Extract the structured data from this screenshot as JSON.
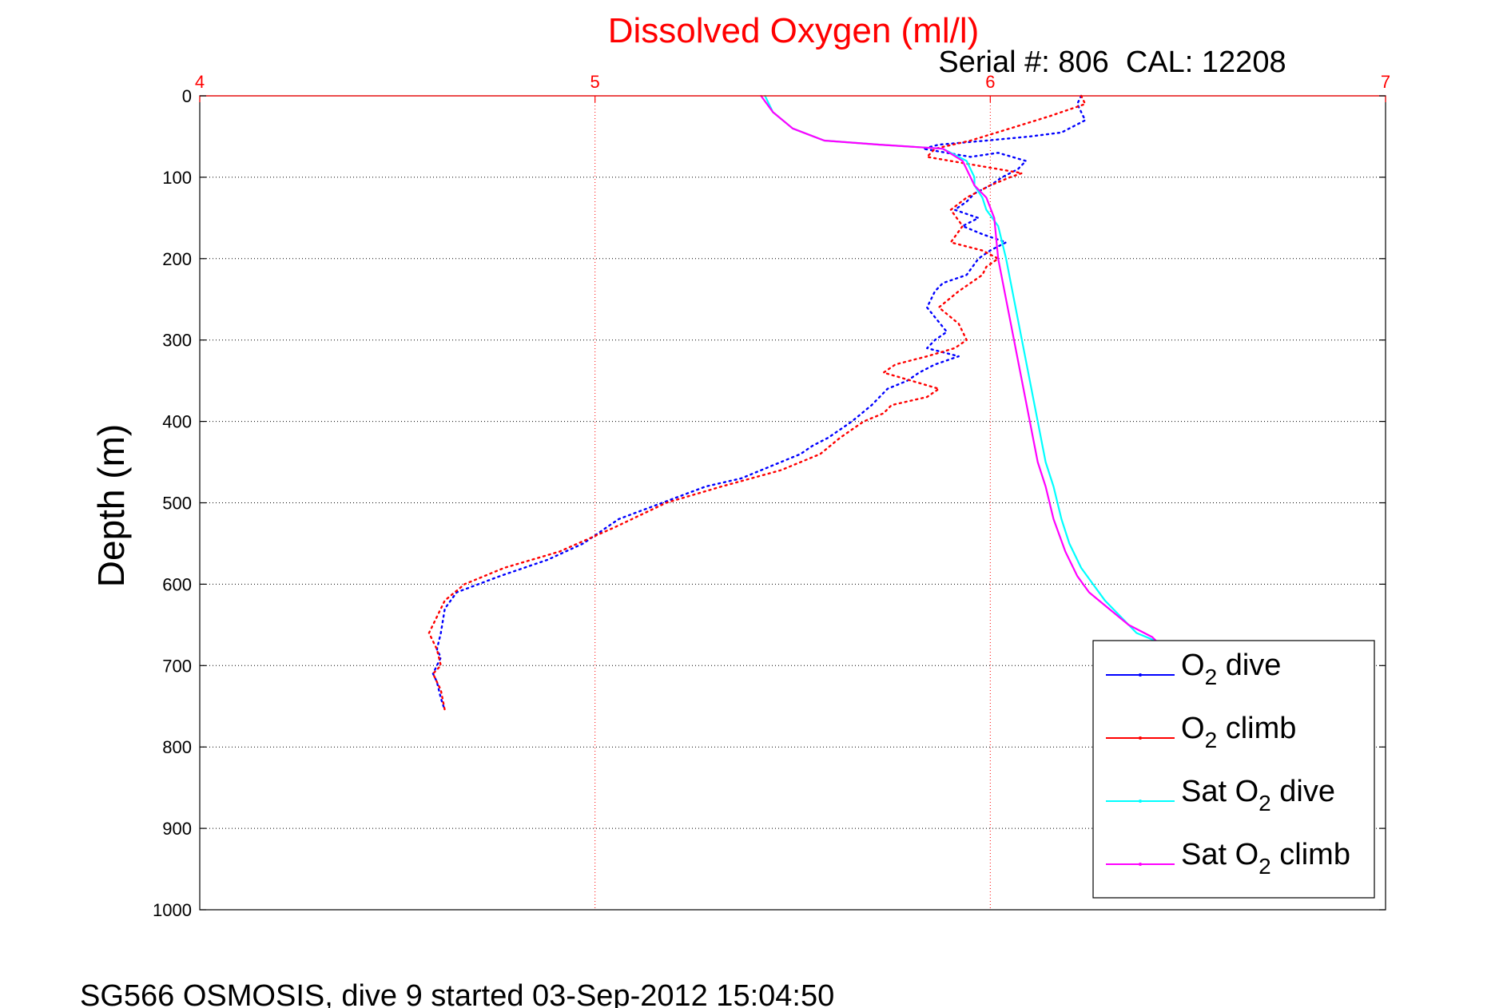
{
  "chart_data": {
    "type": "line",
    "title": "Dissolved Oxygen (ml/l)",
    "subtitle": "Serial #: 806  CAL: 12208",
    "footer": "SG566 OSMOSIS, dive 9 started 03-Sep-2012 15:04:50",
    "ylabel": "Depth (m)",
    "xlim": [
      4,
      7
    ],
    "ylim": [
      0,
      1000
    ],
    "y_reversed": true,
    "x_axis_position": "top",
    "xticks": [
      4,
      5,
      6,
      7
    ],
    "yticks": [
      0,
      100,
      200,
      300,
      400,
      500,
      600,
      700,
      800,
      900,
      1000
    ],
    "grid": true,
    "legend_position": "bottom-right",
    "colors": {
      "title": "#ff0000",
      "x_ticks": "#ff0000",
      "x_grid": "#ff0000",
      "y_grid": "#000000",
      "axes": "#000000"
    },
    "series": [
      {
        "name": "O2 dive",
        "legend_base": "O",
        "legend_sub": "2",
        "legend_suffix": " dive",
        "color": "#0000ff",
        "style": "dotted",
        "x": [
          6.23,
          6.22,
          6.24,
          6.18,
          6.1,
          5.99,
          5.87,
          5.83,
          5.95,
          6.02,
          6.09,
          6.07,
          6.03,
          6.0,
          5.96,
          5.94,
          5.91,
          5.97,
          5.93,
          5.98,
          6.04,
          6.0,
          5.97,
          5.94,
          5.88,
          5.86,
          5.84,
          5.89,
          5.86,
          5.84,
          5.92,
          5.86,
          5.82,
          5.79,
          5.74,
          5.7,
          5.65,
          5.59,
          5.55,
          5.52,
          5.47,
          5.37,
          5.28,
          5.17,
          5.06,
          4.97,
          4.88,
          4.76,
          4.65,
          4.62,
          4.61,
          4.6,
          4.61,
          4.6,
          4.59,
          4.6,
          4.61,
          4.62
        ],
        "y": [
          0,
          10,
          30,
          45,
          50,
          55,
          60,
          65,
          75,
          70,
          80,
          90,
          100,
          110,
          120,
          130,
          140,
          150,
          160,
          170,
          180,
          190,
          200,
          220,
          230,
          240,
          260,
          290,
          300,
          310,
          320,
          330,
          340,
          350,
          360,
          380,
          400,
          420,
          430,
          440,
          450,
          470,
          480,
          500,
          520,
          550,
          570,
          590,
          610,
          630,
          660,
          680,
          690,
          700,
          710,
          720,
          740,
          755
        ]
      },
      {
        "name": "O2 climb",
        "legend_base": "O",
        "legend_sub": "2",
        "legend_suffix": " climb",
        "color": "#ff0000",
        "style": "dotted",
        "x": [
          6.23,
          6.24,
          6.15,
          6.05,
          5.95,
          5.86,
          5.84,
          5.96,
          6.08,
          6.05,
          6.0,
          5.94,
          5.9,
          5.93,
          5.9,
          5.98,
          6.02,
          5.99,
          5.98,
          5.92,
          5.87,
          5.92,
          5.94,
          5.91,
          5.84,
          5.76,
          5.73,
          5.8,
          5.87,
          5.84,
          5.75,
          5.73,
          5.68,
          5.62,
          5.57,
          5.47,
          5.32,
          5.18,
          5.05,
          4.91,
          4.77,
          4.67,
          4.62,
          4.6,
          4.58,
          4.6,
          4.61,
          4.59,
          4.61,
          4.62
        ],
        "y": [
          0,
          10,
          25,
          40,
          55,
          65,
          75,
          85,
          95,
          100,
          110,
          125,
          140,
          160,
          180,
          190,
          200,
          210,
          220,
          240,
          260,
          280,
          300,
          310,
          320,
          330,
          340,
          350,
          360,
          370,
          380,
          390,
          400,
          420,
          440,
          460,
          480,
          500,
          530,
          560,
          580,
          600,
          620,
          640,
          660,
          680,
          700,
          710,
          730,
          755
        ]
      },
      {
        "name": "Sat O2 dive",
        "legend_base": "Sat O",
        "legend_sub": "2",
        "legend_suffix": " dive",
        "color": "#00ffff",
        "style": "solid",
        "x": [
          5.43,
          5.45,
          5.5,
          5.58,
          5.72,
          5.88,
          5.94,
          5.96,
          5.96,
          5.98,
          5.99,
          6.02,
          6.04,
          6.06,
          6.08,
          6.1,
          6.12,
          6.14,
          6.16,
          6.18,
          6.2,
          6.23,
          6.26,
          6.29,
          6.33,
          6.37,
          6.42,
          6.44,
          6.44,
          6.43
        ],
        "y": [
          0,
          20,
          40,
          55,
          60,
          65,
          80,
          100,
          110,
          125,
          140,
          160,
          200,
          250,
          300,
          350,
          400,
          450,
          480,
          520,
          550,
          580,
          600,
          620,
          640,
          660,
          670,
          675,
          680,
          690
        ]
      },
      {
        "name": "Sat O2 climb",
        "legend_base": "Sat O",
        "legend_sub": "2",
        "legend_suffix": " climb",
        "color": "#ff00ff",
        "style": "solid",
        "x": [
          5.42,
          5.45,
          5.5,
          5.58,
          5.72,
          5.88,
          5.93,
          5.95,
          5.96,
          5.99,
          6.01,
          6.02,
          6.04,
          6.06,
          6.08,
          6.1,
          6.12,
          6.14,
          6.16,
          6.19,
          6.22,
          6.25,
          6.3,
          6.35,
          6.41,
          6.42
        ],
        "y": [
          0,
          20,
          40,
          55,
          60,
          65,
          80,
          100,
          110,
          125,
          150,
          200,
          250,
          300,
          350,
          400,
          450,
          480,
          520,
          560,
          590,
          610,
          630,
          650,
          665,
          670
        ]
      }
    ]
  }
}
